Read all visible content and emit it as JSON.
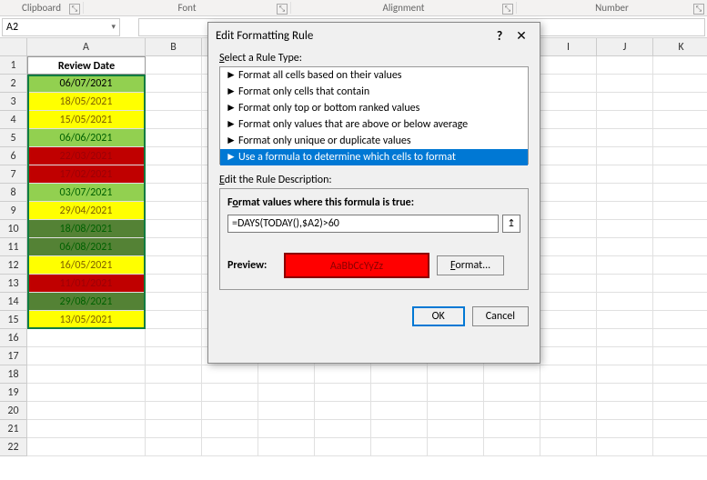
{
  "ribbon": {
    "groups": [
      "Clipboard",
      "Font",
      "Alignment",
      "Number"
    ],
    "widths": [
      92,
      228,
      248,
      209
    ]
  },
  "namebox": {
    "value": "A2"
  },
  "columns": [
    "A",
    "B",
    "C",
    "D",
    "E",
    "F",
    "G",
    "H",
    "I",
    "J",
    "K"
  ],
  "rows_count": 22,
  "header_cell": "Review Date",
  "data": [
    {
      "v": "06/07/2021",
      "bg": "#92d050",
      "fg": "#000000"
    },
    {
      "v": "18/05/2021",
      "bg": "#ffff00",
      "fg": "#7f6000"
    },
    {
      "v": "15/05/2021",
      "bg": "#ffff00",
      "fg": "#7f6000"
    },
    {
      "v": "06/06/2021",
      "bg": "#92d050",
      "fg": "#006100"
    },
    {
      "v": "22/03/2021",
      "bg": "#c00000",
      "fg": "#9c0006"
    },
    {
      "v": "17/02/2021",
      "bg": "#c00000",
      "fg": "#9c0006"
    },
    {
      "v": "03/07/2021",
      "bg": "#92d050",
      "fg": "#006100"
    },
    {
      "v": "29/04/2021",
      "bg": "#ffff00",
      "fg": "#7f6000"
    },
    {
      "v": "18/08/2021",
      "bg": "#548235",
      "fg": "#006100"
    },
    {
      "v": "06/08/2021",
      "bg": "#548235",
      "fg": "#006100"
    },
    {
      "v": "16/05/2021",
      "bg": "#ffff00",
      "fg": "#7f6000"
    },
    {
      "v": "11/01/2021",
      "bg": "#c00000",
      "fg": "#9c0006"
    },
    {
      "v": "29/08/2021",
      "bg": "#548235",
      "fg": "#006100"
    },
    {
      "v": "13/05/2021",
      "bg": "#ffff00",
      "fg": "#7f6000"
    }
  ],
  "dialog": {
    "title": "Edit Formatting Rule",
    "select_label": "Select a Rule Type:",
    "rule_types": [
      "Format all cells based on their values",
      "Format only cells that contain",
      "Format only top or bottom ranked values",
      "Format only values that are above or below average",
      "Format only unique or duplicate values",
      "Use a formula to determine which cells to format"
    ],
    "selected_rule": 5,
    "edit_desc_label": "Edit the Rule Description:",
    "formula_label": "Format values where this formula is true:",
    "formula": "=DAYS(TODAY(),$A2)>60",
    "preview_label": "Preview:",
    "preview_text": "AaBbCcYyZz",
    "preview_bg": "#ff0000",
    "preview_fg": "#8b0000",
    "format_btn": "Format...",
    "ok": "OK",
    "cancel": "Cancel",
    "help": "?",
    "close": "✕"
  }
}
